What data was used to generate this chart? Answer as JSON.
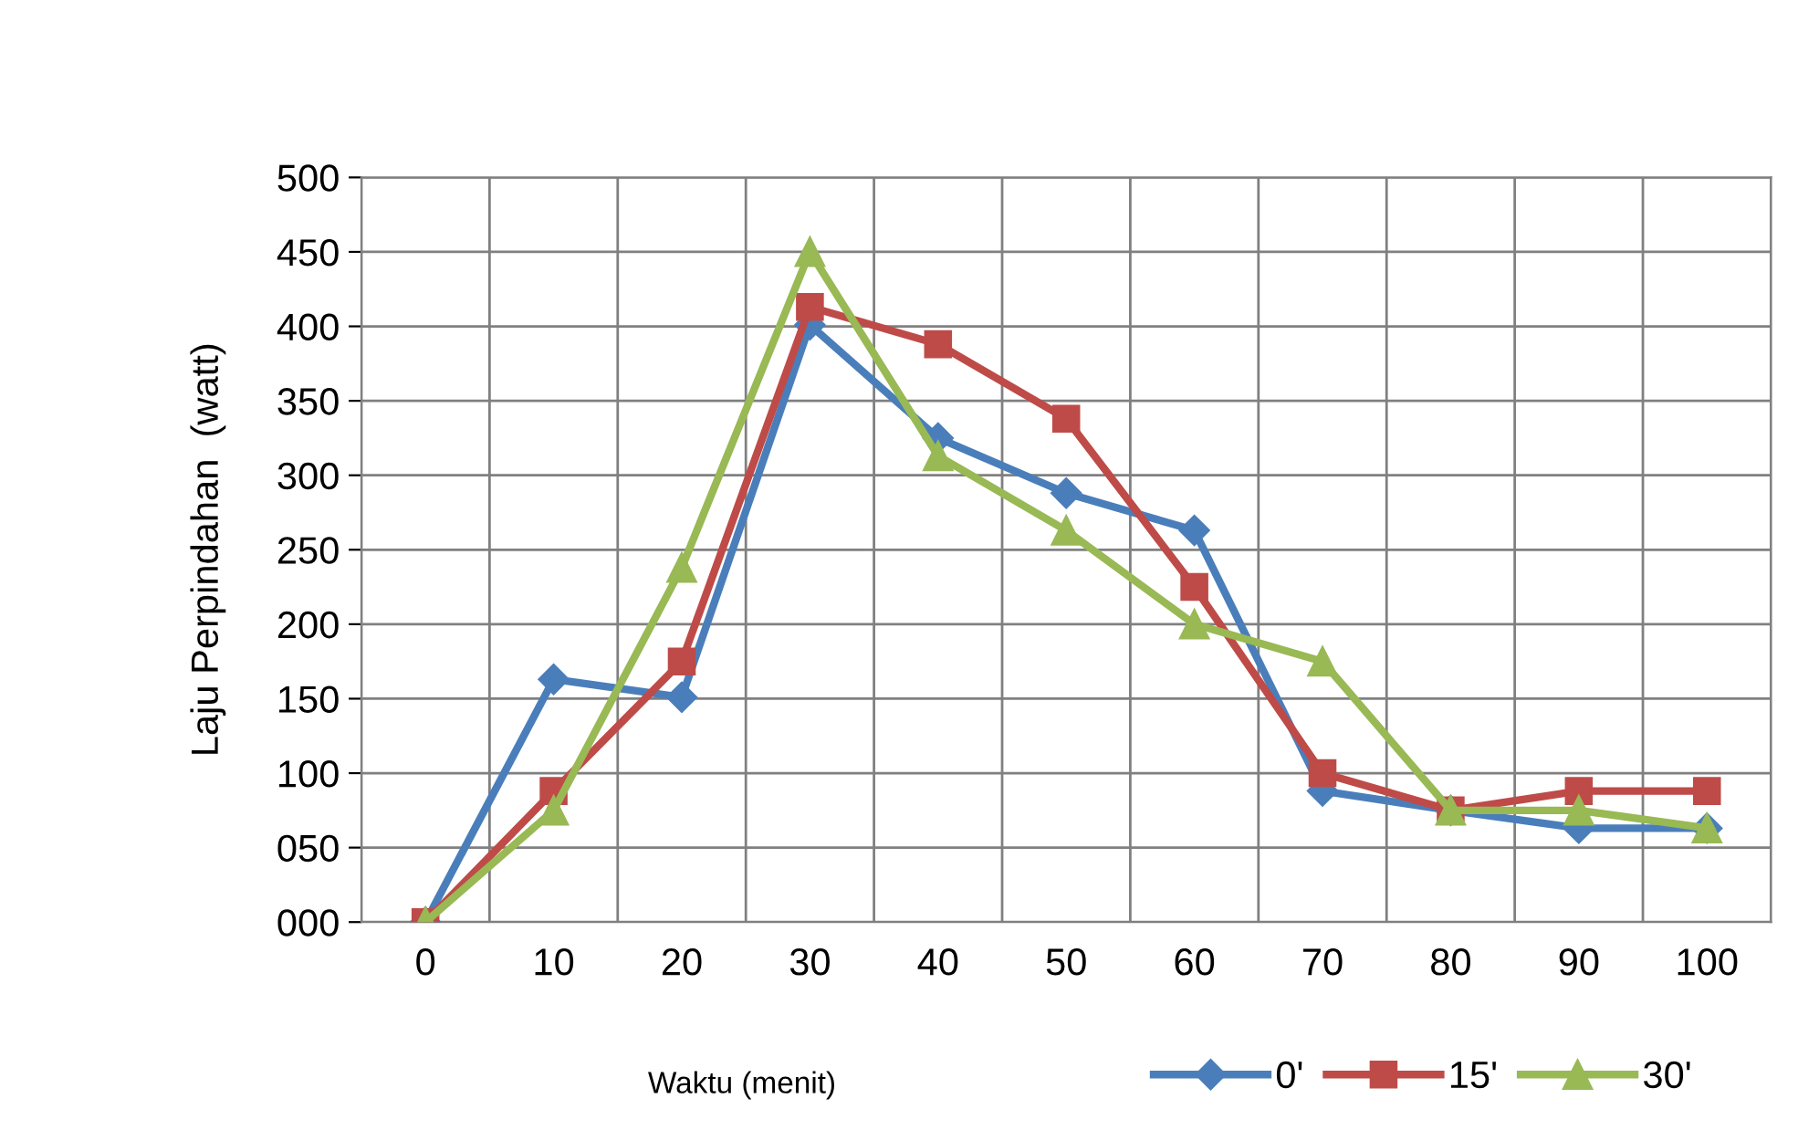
{
  "chart_data": {
    "type": "line",
    "xlabel": "Waktu (menit)",
    "ylabel": "Laju Perpindahan  (watt)",
    "categories": [
      "0",
      "10",
      "20",
      "30",
      "40",
      "50",
      "60",
      "70",
      "80",
      "90",
      "100"
    ],
    "series": [
      {
        "name": "0'",
        "color": "#4a7ebb",
        "marker": "diamond",
        "values": [
          0,
          163,
          151,
          401,
          325,
          288,
          263,
          88,
          75,
          63,
          63
        ]
      },
      {
        "name": "15'",
        "color": "#be4b48",
        "marker": "square",
        "values": [
          0,
          88,
          175,
          413,
          388,
          338,
          225,
          100,
          75,
          88,
          88
        ]
      },
      {
        "name": "30'",
        "color": "#98b954",
        "marker": "triangle",
        "values": [
          0,
          75,
          238,
          450,
          313,
          263,
          200,
          175,
          75,
          75,
          63
        ]
      }
    ],
    "ylim": [
      0,
      500
    ],
    "yticks": [
      {
        "value": 0,
        "label": "000"
      },
      {
        "value": 50,
        "label": "050"
      },
      100,
      150,
      200,
      250,
      300,
      350,
      400,
      450,
      500
    ],
    "grid": true,
    "legend": "bottom right",
    "line_style": "solid"
  }
}
